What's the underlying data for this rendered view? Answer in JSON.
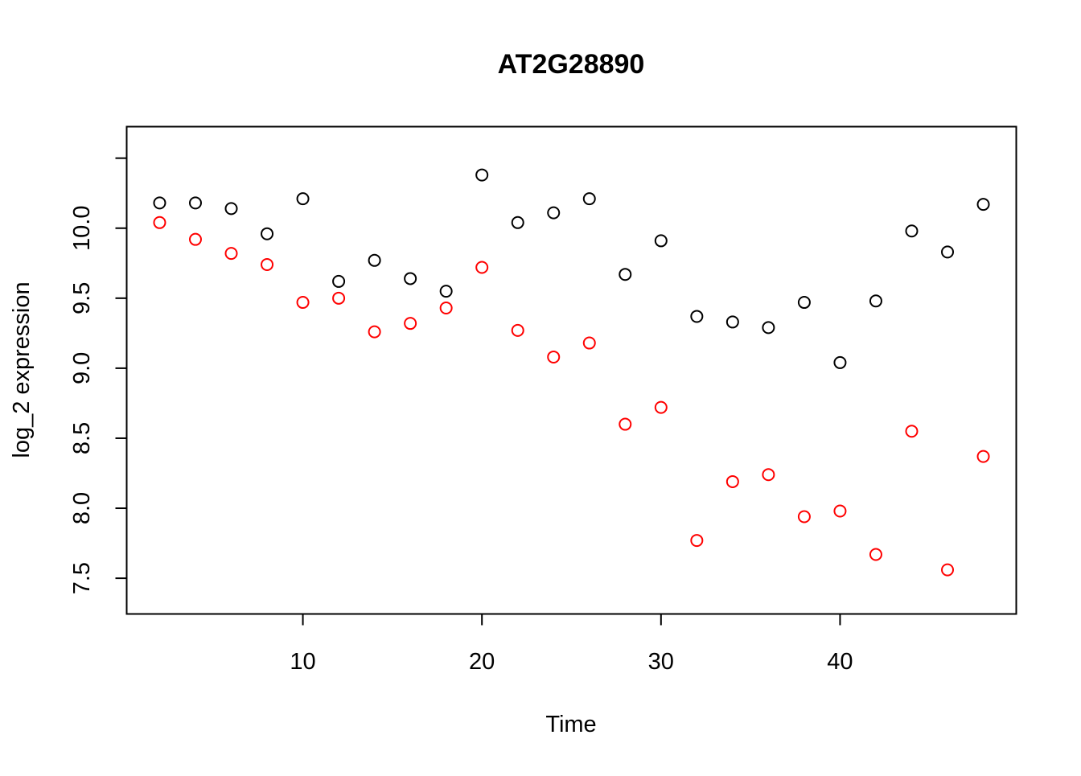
{
  "chart_data": {
    "type": "scatter",
    "title": "AT2G28890",
    "xlabel": "Time",
    "ylabel": "log_2 expression",
    "xlim": [
      0.16,
      49.84
    ],
    "ylim": [
      7.245,
      10.725
    ],
    "x_ticks": [
      10,
      20,
      30,
      40
    ],
    "y_ticks": [
      7.5,
      8.0,
      8.5,
      9.0,
      9.5,
      10.0,
      10.5
    ],
    "y_tick_labels": [
      "7.5",
      "8.0",
      "8.5",
      "9.0",
      "9.5",
      "10.0",
      ""
    ],
    "grid": false,
    "legend": "none",
    "x": [
      2,
      4,
      6,
      8,
      10,
      12,
      14,
      16,
      18,
      20,
      22,
      24,
      26,
      28,
      30,
      32,
      34,
      36,
      38,
      40,
      42,
      44,
      46,
      48
    ],
    "series": [
      {
        "color": "#000000",
        "marker": "open-circle",
        "values": [
          10.18,
          10.18,
          10.14,
          9.96,
          10.21,
          9.62,
          9.77,
          9.64,
          9.55,
          10.38,
          10.04,
          10.11,
          10.21,
          9.67,
          9.91,
          9.37,
          9.33,
          9.29,
          9.47,
          9.04,
          9.48,
          9.98,
          9.83,
          10.17
        ]
      },
      {
        "color": "#ff0000",
        "marker": "open-circle",
        "values": [
          10.04,
          9.92,
          9.82,
          9.74,
          9.47,
          9.5,
          9.26,
          9.32,
          9.43,
          9.72,
          9.27,
          9.08,
          9.18,
          8.6,
          8.72,
          7.77,
          8.19,
          8.24,
          7.94,
          7.98,
          7.67,
          8.55,
          7.56,
          8.37
        ]
      }
    ]
  }
}
